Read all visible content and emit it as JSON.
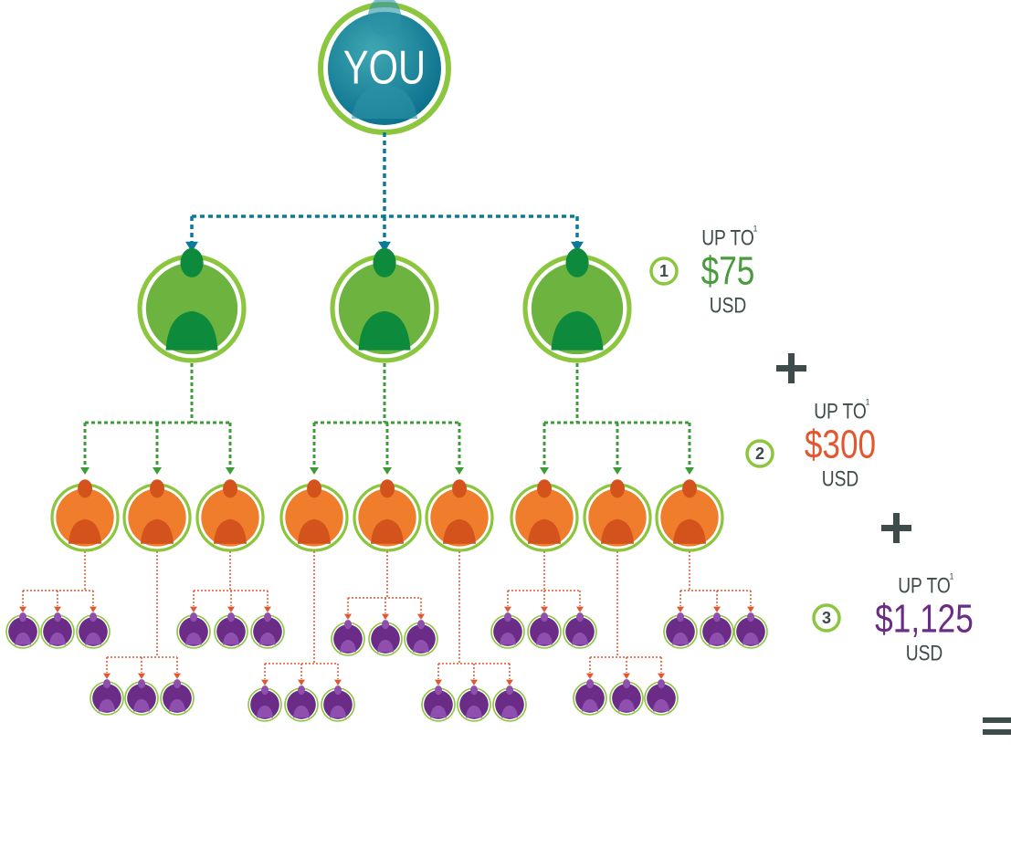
{
  "root": {
    "label": "YOU"
  },
  "tiers": [
    {
      "number": "1",
      "prefix": "UP TO",
      "footnote": "1",
      "amount": "$75",
      "currency": "USD"
    },
    {
      "number": "2",
      "prefix": "UP TO",
      "footnote": "1",
      "amount": "$300",
      "currency": "USD"
    },
    {
      "number": "3",
      "prefix": "UP TO",
      "footnote": "1",
      "amount": "$1,125",
      "currency": "USD"
    }
  ]
}
